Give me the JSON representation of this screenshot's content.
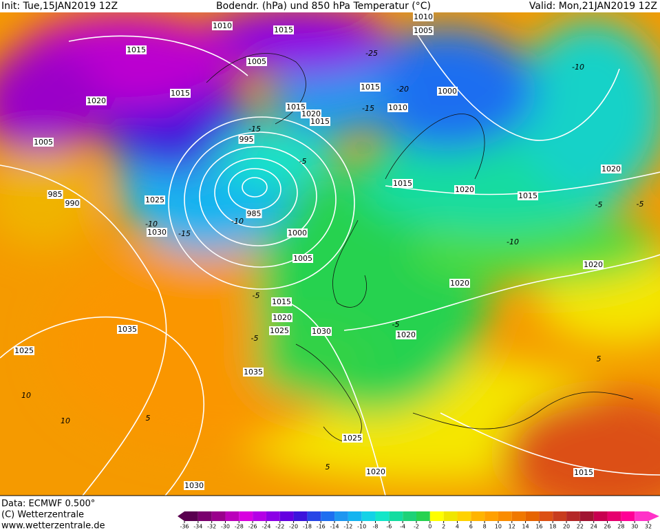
{
  "header": {
    "init": "Init: Tue,15JAN2019 12Z",
    "title": "Bodendr. (hPa) und 850 hPa Temperatur (°C)",
    "valid": "Valid: Mon,21JAN2019 12Z"
  },
  "footer": {
    "data": "Data: ECMWF  0.500°",
    "copyright": "(C) Wetterzentrale",
    "url": "www.wetterzentrale.de"
  },
  "isobar_labels": [
    "1010",
    "1015",
    "1010",
    "1005",
    "1015",
    "1005",
    "1015",
    "1020",
    "1015",
    "1000",
    "1010",
    "1015",
    "1020",
    "1015",
    "1005",
    "995",
    "1020",
    "1015",
    "1020",
    "1015",
    "985",
    "990",
    "1025",
    "985",
    "1030",
    "1000",
    "1005",
    "1020",
    "1020",
    "1015",
    "1020",
    "1025",
    "1030",
    "1020",
    "1035",
    "1025",
    "1035",
    "1025",
    "1020",
    "1030",
    "1015"
  ],
  "temperature_labels": [
    "-25",
    "-20",
    "-15",
    "-15",
    "-10",
    "-10",
    "-10",
    "-5",
    "-5",
    "-5",
    "-5",
    "-5",
    "-10",
    "-15",
    "5",
    "10",
    "10",
    "5",
    "5",
    "-5"
  ],
  "colorbar": {
    "ticks": [
      -36,
      -34,
      -32,
      -30,
      -28,
      -26,
      -24,
      -22,
      -20,
      -18,
      -16,
      -14,
      -12,
      -10,
      -8,
      -6,
      -4,
      -2,
      0,
      2,
      4,
      6,
      8,
      10,
      12,
      14,
      16,
      18,
      20,
      22,
      24,
      26,
      28,
      30,
      32
    ],
    "colors": [
      "#5a0050",
      "#7a006e",
      "#9a008c",
      "#bb00bb",
      "#d800e0",
      "#b400e6",
      "#8c00e6",
      "#6400e0",
      "#3c14dc",
      "#2846e6",
      "#1e6ef0",
      "#1e96f0",
      "#14b4f0",
      "#14d2e6",
      "#14e6c8",
      "#14dca0",
      "#1ed278",
      "#28d250",
      "#ffff00",
      "#f0e600",
      "#ffd200",
      "#ffb400",
      "#ffa000",
      "#fa8c00",
      "#f07800",
      "#e66400",
      "#dc5014",
      "#c83c1e",
      "#b42828",
      "#a01432",
      "#c80050",
      "#e6006e",
      "#ff0096",
      "#ff32c8"
    ]
  }
}
